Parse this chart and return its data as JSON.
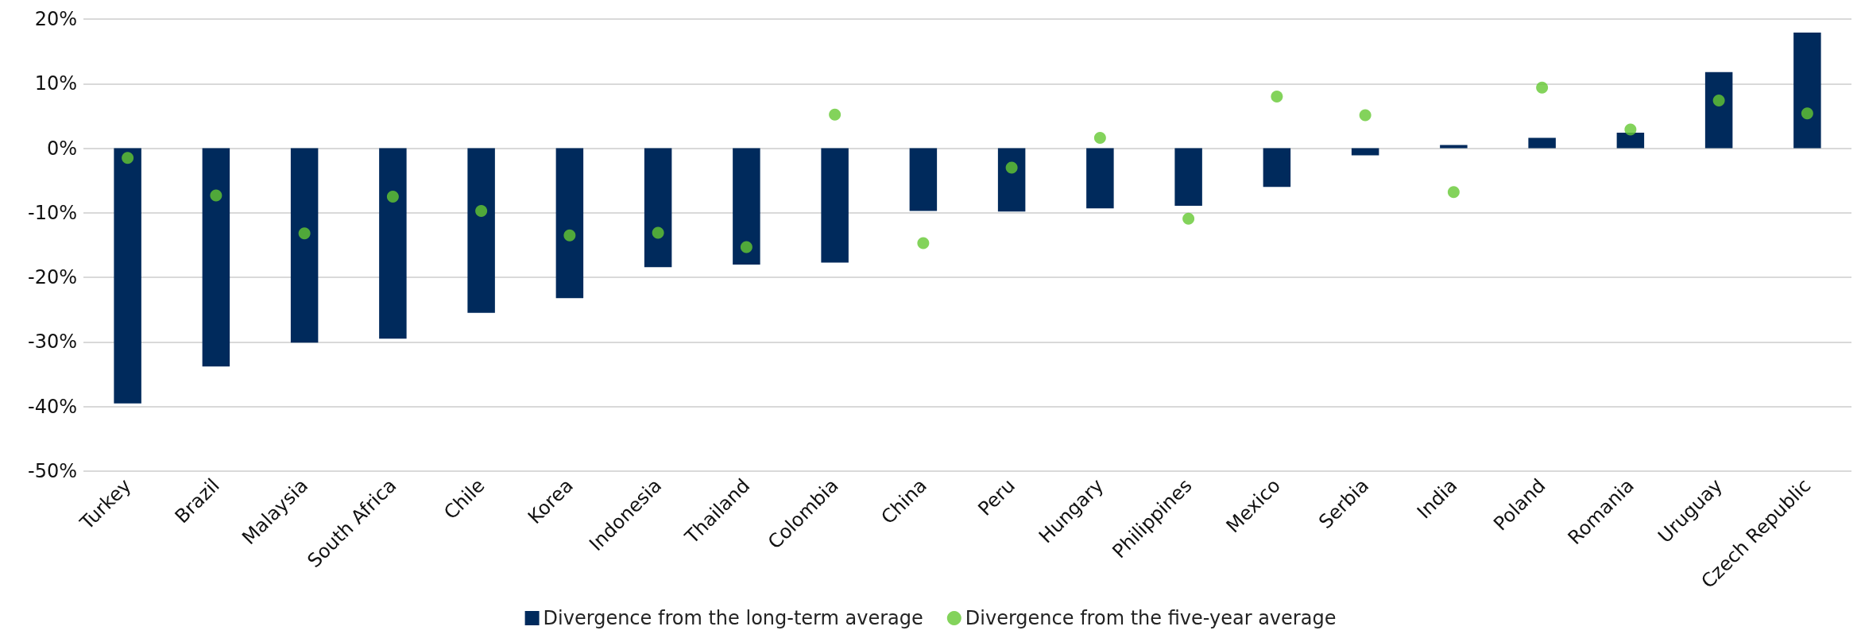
{
  "chart_data": {
    "type": "bar",
    "categories": [
      "Turkey",
      "Brazil",
      "Malaysia",
      "South Africa",
      "Chile",
      "Korea",
      "Indonesia",
      "Thailand",
      "Colombia",
      "China",
      "Peru",
      "Hungary",
      "Philippines",
      "Mexico",
      "Serbia",
      "India",
      "Poland",
      "Romania",
      "Uruguay",
      "Czech Republic"
    ],
    "series": [
      {
        "name": "Divergence from the long-term average",
        "type": "bar",
        "color": "#002a5c",
        "values": [
          -39.5,
          -33.8,
          -30.1,
          -29.5,
          -25.5,
          -23.2,
          -18.4,
          -18.0,
          -17.7,
          -9.7,
          -9.8,
          -9.3,
          -8.9,
          -6.0,
          -1.1,
          0.5,
          1.6,
          2.4,
          11.8,
          17.9
        ]
      },
      {
        "name": "Divergence from the five-year average",
        "type": "scatter",
        "color": "#64c832",
        "marker": "circle",
        "values": [
          -1.5,
          -7.3,
          -13.2,
          -7.5,
          -9.7,
          -13.5,
          -13.1,
          -15.3,
          5.2,
          -14.7,
          -3.0,
          1.6,
          -10.9,
          8.0,
          5.1,
          -6.8,
          9.4,
          2.9,
          7.4,
          5.4
        ]
      }
    ],
    "ylim": [
      -50,
      20
    ],
    "yticks": [
      {
        "value": -50,
        "label": "-50%"
      },
      {
        "value": -40,
        "label": "-40%"
      },
      {
        "value": -30,
        "label": "-30%"
      },
      {
        "value": -20,
        "label": "-20%"
      },
      {
        "value": -10,
        "label": "-10%"
      },
      {
        "value": 0,
        "label": "0%"
      },
      {
        "value": 10,
        "label": "10%"
      },
      {
        "value": 20,
        "label": "20%"
      }
    ],
    "grid": "y",
    "legend": "bottom"
  }
}
